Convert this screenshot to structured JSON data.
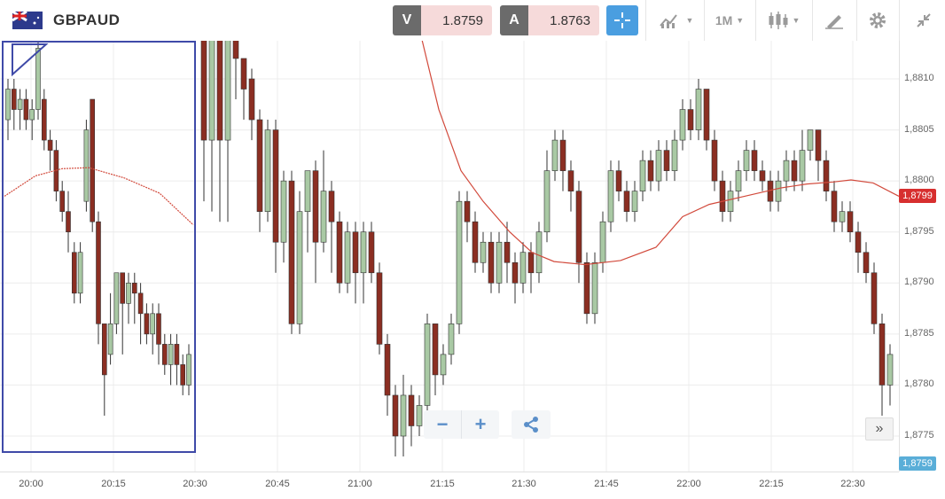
{
  "header": {
    "symbol": "GBPAUD",
    "bid": {
      "letter": "V",
      "value": "1.8759"
    },
    "ask": {
      "letter": "A",
      "value": "1.8763"
    },
    "timeframe": "1M"
  },
  "chart_data": {
    "type": "candlestick",
    "y_ticks": [
      "1,8810",
      "1,8805",
      "1,8800",
      "1,8795",
      "1,8790",
      "1,8785",
      "1,8780",
      "1,8775"
    ],
    "y_tick_values": [
      1.881,
      1.8805,
      1.88,
      1.8795,
      1.879,
      1.8785,
      1.878,
      1.8775
    ],
    "x_ticks": [
      "20:00",
      "20:15",
      "20:30",
      "20:45",
      "21:00",
      "21:15",
      "21:30",
      "21:45",
      "22:00",
      "22:15",
      "22:30"
    ],
    "current_price_label": "1,8759",
    "ma_price_label": "1,8799",
    "colors": {
      "up": "#a9c9a4",
      "down": "#8b2e22",
      "ma": "#d24a3c",
      "price_tag": "#5aaed8",
      "ma_tag": "#d72f2f"
    }
  }
}
